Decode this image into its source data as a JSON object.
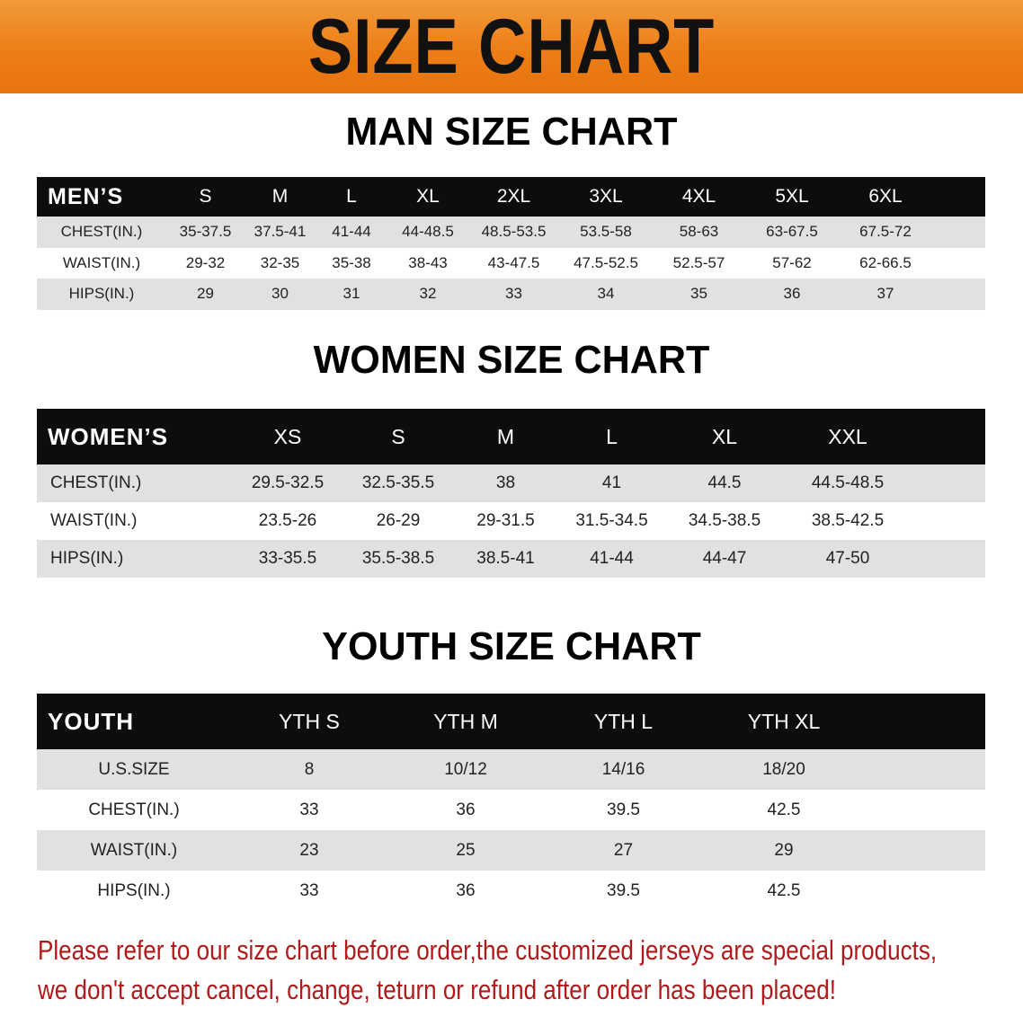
{
  "banner": {
    "title": "SIZE CHART",
    "color": "#ec7c14"
  },
  "men": {
    "title": "MAN SIZE CHART",
    "header": "MEN’S",
    "sizes": [
      "S",
      "M",
      "L",
      "XL",
      "2XL",
      "3XL",
      "4XL",
      "5XL",
      "6XL"
    ],
    "rows": [
      {
        "label": "CHEST(IN.)",
        "values": [
          "35-37.5",
          "37.5-41",
          "41-44",
          "44-48.5",
          "48.5-53.5",
          "53.5-58",
          "58-63",
          "63-67.5",
          "67.5-72"
        ]
      },
      {
        "label": "WAIST(IN.)",
        "values": [
          "29-32",
          "32-35",
          "35-38",
          "38-43",
          "43-47.5",
          "47.5-52.5",
          "52.5-57",
          "57-62",
          "62-66.5"
        ]
      },
      {
        "label": "HIPS(IN.)",
        "values": [
          "29",
          "30",
          "31",
          "32",
          "33",
          "34",
          "35",
          "36",
          "37"
        ]
      }
    ]
  },
  "women": {
    "title": "WOMEN SIZE CHART",
    "header": "WOMEN’S",
    "sizes": [
      "XS",
      "S",
      "M",
      "L",
      "XL",
      "XXL"
    ],
    "rows": [
      {
        "label": "CHEST(IN.)",
        "values": [
          "29.5-32.5",
          "32.5-35.5",
          "38",
          "41",
          "44.5",
          "44.5-48.5"
        ]
      },
      {
        "label": "WAIST(IN.)",
        "values": [
          "23.5-26",
          "26-29",
          "29-31.5",
          "31.5-34.5",
          "34.5-38.5",
          "38.5-42.5"
        ]
      },
      {
        "label": "HIPS(IN.)",
        "values": [
          "33-35.5",
          "35.5-38.5",
          "38.5-41",
          "41-44",
          "44-47",
          "47-50"
        ]
      }
    ]
  },
  "youth": {
    "title": "YOUTH SIZE CHART",
    "header": "YOUTH",
    "sizes": [
      "YTH S",
      "YTH M",
      "YTH L",
      "YTH XL"
    ],
    "rows": [
      {
        "label": "U.S.SIZE",
        "values": [
          "8",
          "10/12",
          "14/16",
          "18/20"
        ]
      },
      {
        "label": "CHEST(IN.)",
        "values": [
          "33",
          "36",
          "39.5",
          "42.5"
        ]
      },
      {
        "label": "WAIST(IN.)",
        "values": [
          "23",
          "25",
          "27",
          "29"
        ]
      },
      {
        "label": "HIPS(IN.)",
        "values": [
          "33",
          "36",
          "39.5",
          "42.5"
        ]
      }
    ]
  },
  "notice": {
    "line1": "Please refer to our size chart before order,the customized jerseys are special products,",
    "line2": "we don't accept cancel, change, teturn or refund after order has been placed!",
    "color": "#b01a1a"
  }
}
